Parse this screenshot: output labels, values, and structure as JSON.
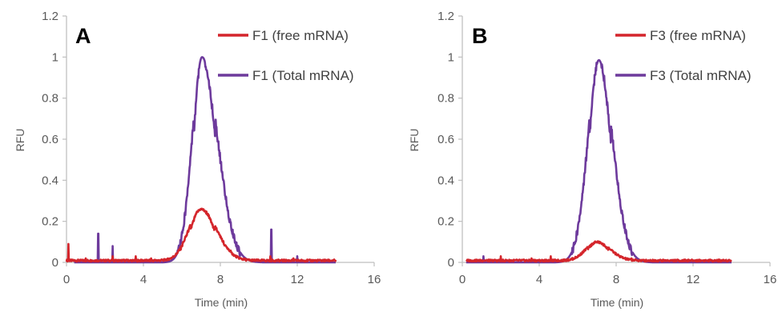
{
  "colors": {
    "free": "#d4252b",
    "total": "#6d3a9c",
    "axis": "#bfbfbf",
    "text": "#595959"
  },
  "chart_data": [
    {
      "type": "line",
      "panel_label": "A",
      "xlabel": "Time (min)",
      "ylabel": "RFU",
      "xlim": [
        0,
        16
      ],
      "ylim": [
        0,
        1.2
      ],
      "x_ticks": [
        "0",
        "4",
        "8",
        "12",
        "16"
      ],
      "y_ticks": [
        "0",
        "0.2",
        "0.4",
        "0.6",
        "0.8",
        "1",
        "1.2"
      ],
      "legend_position": "top-right",
      "series": [
        {
          "name": "F1 (free mRNA)",
          "color": "#d4252b",
          "peak_time": 7.0,
          "peak_value": 0.25,
          "rise_width": 0.55,
          "fall_width": 0.7,
          "baseline": 0.01,
          "x_start": 0.0,
          "x_end": 14.0,
          "spikes": [
            [
              0.1,
              0.09
            ],
            [
              1.0,
              0.02
            ],
            [
              2.4,
              0.03
            ],
            [
              3.6,
              0.03
            ],
            [
              4.4,
              0.02
            ],
            [
              10.6,
              0.03
            ],
            [
              11.8,
              0.02
            ]
          ]
        },
        {
          "name": "F1 (Total mRNA)",
          "color": "#6d3a9c",
          "peak_time": 7.05,
          "peak_value": 1.0,
          "rise_width": 0.45,
          "fall_width": 0.7,
          "baseline": 0.0,
          "x_start": 0.4,
          "x_end": 14.0,
          "spikes": [
            [
              1.65,
              0.14
            ],
            [
              2.4,
              0.08
            ],
            [
              10.65,
              0.16
            ],
            [
              12.0,
              0.03
            ]
          ]
        }
      ]
    },
    {
      "type": "line",
      "panel_label": "B",
      "xlabel": "Time (min)",
      "ylabel": "RFU",
      "xlim": [
        0,
        16
      ],
      "ylim": [
        0,
        1.2
      ],
      "x_ticks": [
        "0",
        "4",
        "8",
        "12",
        "16"
      ],
      "y_ticks": [
        "0",
        "0.2",
        "0.4",
        "0.6",
        "0.8",
        "1",
        "1.2"
      ],
      "legend_position": "top-right",
      "series": [
        {
          "name": "F3 (free mRNA)",
          "color": "#d4252b",
          "peak_time": 7.0,
          "peak_value": 0.09,
          "rise_width": 0.5,
          "fall_width": 0.6,
          "baseline": 0.01,
          "x_start": 0.2,
          "x_end": 14.0,
          "spikes": [
            [
              2.0,
              0.03
            ],
            [
              3.6,
              0.02
            ],
            [
              4.6,
              0.03
            ],
            [
              8.8,
              0.02
            ]
          ]
        },
        {
          "name": "F3 (Total mRNA)",
          "color": "#6d3a9c",
          "peak_time": 7.1,
          "peak_value": 0.985,
          "rise_width": 0.5,
          "fall_width": 0.62,
          "baseline": 0.0,
          "x_start": 0.2,
          "x_end": 14.0,
          "spikes": [
            [
              1.1,
              0.03
            ],
            [
              8.7,
              0.05
            ]
          ]
        }
      ]
    }
  ]
}
